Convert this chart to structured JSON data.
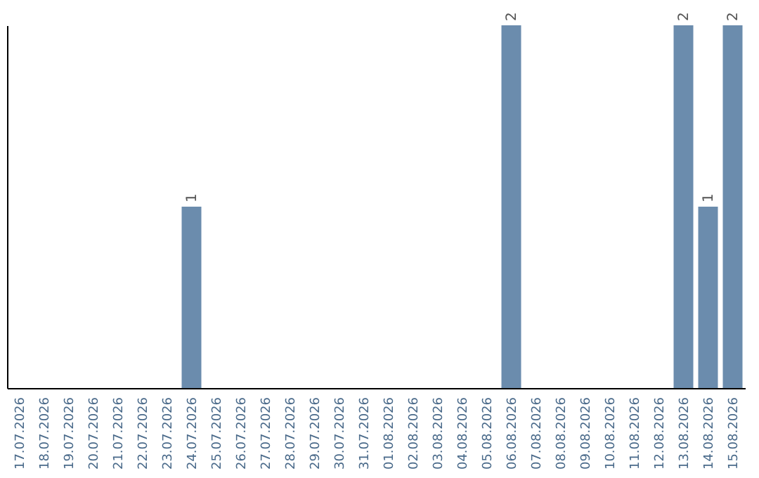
{
  "chart_data": {
    "type": "bar",
    "categories": [
      "17.07.2026",
      "18.07.2026",
      "19.07.2026",
      "20.07.2026",
      "21.07.2026",
      "22.07.2026",
      "23.07.2026",
      "24.07.2026",
      "25.07.2026",
      "26.07.2026",
      "27.07.2026",
      "28.07.2026",
      "29.07.2026",
      "30.07.2026",
      "31.07.2026",
      "01.08.2026",
      "02.08.2026",
      "03.08.2026",
      "04.08.2026",
      "05.08.2026",
      "06.08.2026",
      "07.08.2026",
      "08.08.2026",
      "09.08.2026",
      "10.08.2026",
      "11.08.2026",
      "12.08.2026",
      "13.08.2026",
      "14.08.2026",
      "15.08.2026"
    ],
    "values": [
      null,
      null,
      null,
      null,
      null,
      null,
      null,
      1,
      null,
      null,
      null,
      null,
      null,
      null,
      null,
      null,
      null,
      null,
      null,
      null,
      2,
      null,
      null,
      null,
      null,
      null,
      null,
      2,
      1,
      2
    ],
    "color": "#6b8cad",
    "ylim": [
      0,
      2
    ],
    "data_labels": true,
    "grid": false,
    "tick_labels": "x"
  }
}
